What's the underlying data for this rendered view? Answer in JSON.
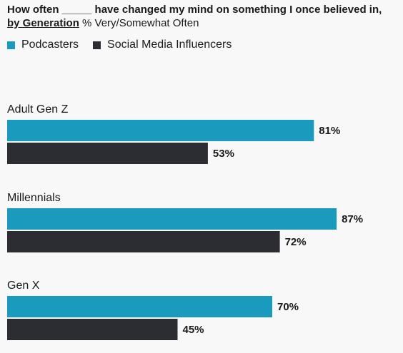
{
  "title": {
    "line1": "How often _____ have changed my mind on something I once believed in,",
    "line2_bold": "by Generation",
    "line2_sub": " % Very/Somewhat Often"
  },
  "legend": [
    {
      "label": "Podcasters",
      "color": "#1a9bbd"
    },
    {
      "label": "Social Media Influencers",
      "color": "#2c2c33"
    }
  ],
  "chart_data": {
    "type": "bar",
    "orientation": "horizontal",
    "categories": [
      "Adult Gen Z",
      "Millennials",
      "Gen X"
    ],
    "series": [
      {
        "name": "Podcasters",
        "values": [
          81,
          87,
          70
        ],
        "color": "#1a9bbd"
      },
      {
        "name": "Social Media Influencers",
        "values": [
          53,
          72,
          45
        ],
        "color": "#2c2c33"
      }
    ],
    "value_suffix": "%",
    "xlim": [
      0,
      100
    ],
    "grid": false
  }
}
